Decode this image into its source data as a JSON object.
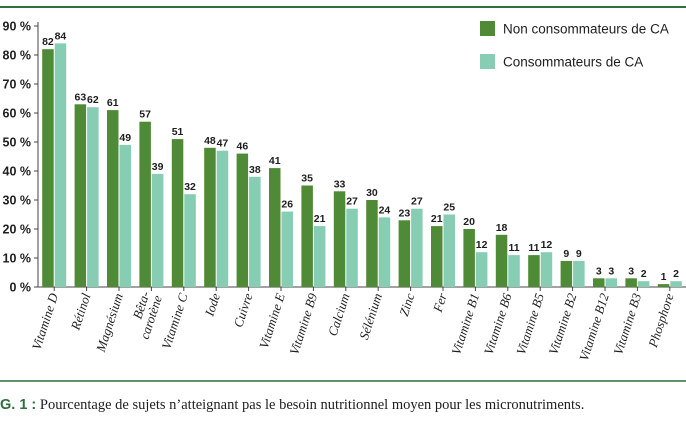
{
  "colors": {
    "frame": "#2e6f3c",
    "non_consumers": "#4f8a37",
    "consumers": "#86cdb4",
    "caption_label": "#2e6f3c"
  },
  "caption": {
    "label": "G. 1 :",
    "text": "Pourcentage de sujets n’atteignant pas le besoin nutritionnel moyen pour les micronutriments."
  },
  "chart_data": {
    "type": "bar",
    "title": "",
    "xlabel": "",
    "ylabel": "",
    "ylim": [
      0,
      90
    ],
    "yticks": [
      "0 %",
      "10 %",
      "20 %",
      "30 %",
      "40 %",
      "50 %",
      "60 %",
      "70 %",
      "80 %",
      "90 %"
    ],
    "grid": false,
    "legend_position": "top-right",
    "categories": [
      "Vitamine D",
      "Rétinol",
      "Magnésium",
      "Bêta-carotène",
      "Vitamine C",
      "Iode",
      "Cuivre",
      "Vitamine E",
      "Vitamine B9",
      "Calcium",
      "Sélénium",
      "Zinc",
      "Fer",
      "Vitamine B1",
      "Vitamine B6",
      "Vitamine B5",
      "Vitamine B2",
      "Vitamine B12",
      "Vitamine B3",
      "Phosphore"
    ],
    "category_lines": [
      [
        "Vitamine D"
      ],
      [
        "Rétinol"
      ],
      [
        "Magnésium"
      ],
      [
        "Bêta-",
        "carotène"
      ],
      [
        "Vitamine C"
      ],
      [
        "Iode"
      ],
      [
        "Cuivre"
      ],
      [
        "Vitamine E"
      ],
      [
        "Vitamine B9"
      ],
      [
        "Calcium"
      ],
      [
        "Sélénium"
      ],
      [
        "Zinc"
      ],
      [
        "Fer"
      ],
      [
        "Vitamine B1"
      ],
      [
        "Vitamine B6"
      ],
      [
        "Vitamine B5"
      ],
      [
        "Vitamine B2"
      ],
      [
        "Vitamine B12"
      ],
      [
        "Vitamine B3"
      ],
      [
        "Phosphore"
      ]
    ],
    "series": [
      {
        "name": "Non consommateurs de CA",
        "values": [
          82,
          63,
          61,
          57,
          51,
          48,
          46,
          41,
          35,
          33,
          30,
          23,
          21,
          20,
          18,
          11,
          9,
          3,
          3,
          1
        ]
      },
      {
        "name": "Consommateurs de CA",
        "values": [
          84,
          62,
          49,
          39,
          32,
          47,
          38,
          26,
          21,
          27,
          24,
          27,
          25,
          12,
          11,
          12,
          9,
          3,
          2,
          2
        ]
      }
    ]
  }
}
